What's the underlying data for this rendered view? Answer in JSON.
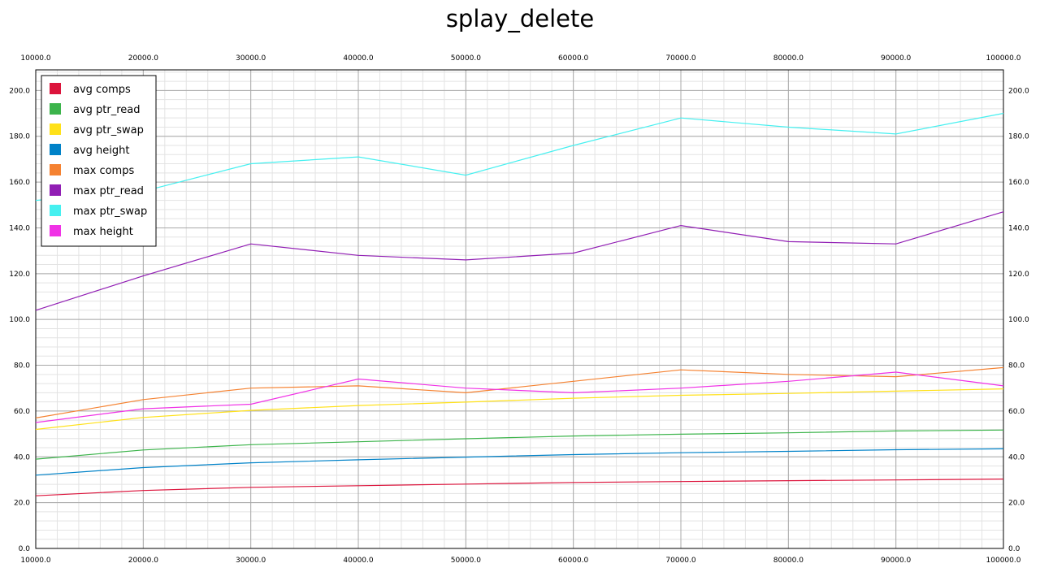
{
  "chart_data": {
    "type": "line",
    "title": "splay_delete",
    "xlabel": "",
    "ylabel": "",
    "x": [
      10000.0,
      20000.0,
      30000.0,
      40000.0,
      50000.0,
      60000.0,
      70000.0,
      80000.0,
      90000.0,
      100000.0
    ],
    "x_tick_labels": [
      "10000.0",
      "20000.0",
      "30000.0",
      "40000.0",
      "50000.0",
      "60000.0",
      "70000.0",
      "80000.0",
      "90000.0",
      "100000.0"
    ],
    "y_tick_labels": [
      "0.0",
      "20.0",
      "40.0",
      "60.0",
      "80.0",
      "100.0",
      "120.0",
      "140.0",
      "160.0",
      "180.0",
      "200.0"
    ],
    "xlim": [
      10000,
      100000
    ],
    "ylim": [
      0,
      209
    ],
    "grid": true,
    "legend_position": "top-left",
    "series": [
      {
        "name": "avg comps",
        "color": "#dc143c",
        "values": [
          23,
          25.3,
          26.7,
          27.4,
          28.1,
          28.8,
          29.2,
          29.6,
          29.9,
          30.3
        ]
      },
      {
        "name": "avg ptr_read",
        "color": "#3cb44b",
        "values": [
          39,
          43,
          45.3,
          46.6,
          47.9,
          49.1,
          49.9,
          50.5,
          51.3,
          51.7
        ]
      },
      {
        "name": "avg ptr_swap",
        "color": "#ffe119",
        "values": [
          52,
          57.2,
          60.3,
          62.4,
          63.9,
          65.6,
          66.9,
          67.7,
          68.7,
          69.7
        ]
      },
      {
        "name": "avg height",
        "color": "#0082c8",
        "values": [
          32,
          35.3,
          37.4,
          38.7,
          39.9,
          41,
          41.8,
          42.4,
          43.1,
          43.5
        ]
      },
      {
        "name": "max comps",
        "color": "#f58231",
        "values": [
          57,
          65,
          70,
          71,
          68,
          73,
          78,
          76,
          75,
          79
        ]
      },
      {
        "name": "max ptr_read",
        "color": "#911eb4",
        "values": [
          104,
          119,
          133,
          128,
          126,
          129,
          141,
          134,
          133,
          147
        ]
      },
      {
        "name": "max ptr_swap",
        "color": "#46f0f0",
        "values": [
          152,
          156,
          168,
          171,
          163,
          176,
          188,
          184,
          181,
          190
        ]
      },
      {
        "name": "max height",
        "color": "#f032e6",
        "values": [
          55,
          61,
          63,
          74,
          70,
          68,
          70,
          73,
          77,
          71
        ]
      }
    ]
  }
}
